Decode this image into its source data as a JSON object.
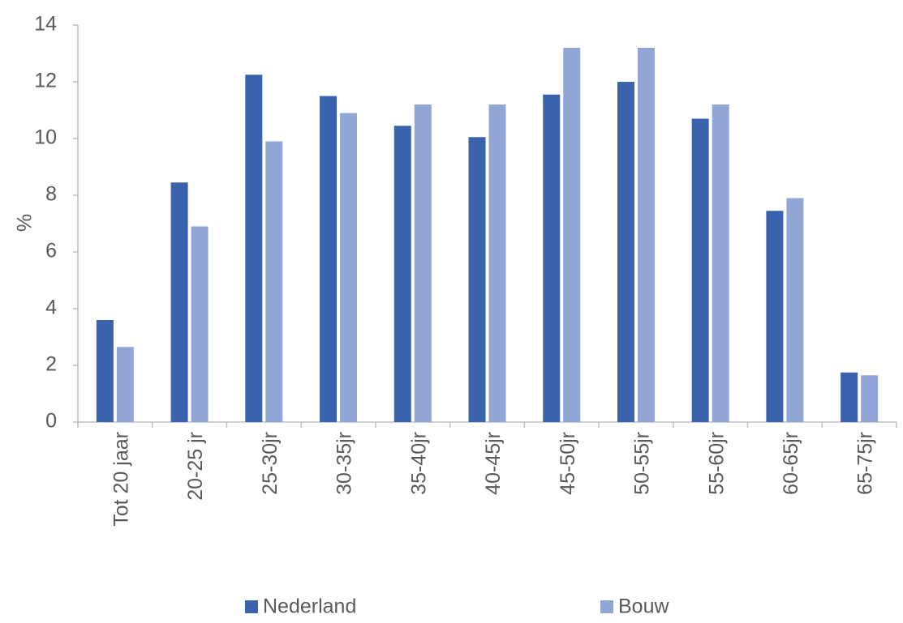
{
  "chart_data": {
    "type": "bar",
    "y_label": "%",
    "categories": [
      "Tot 20 jaar",
      "20-25 jr",
      "25-30jr",
      "30-35jr",
      "35-40jr",
      "40-45jr",
      "45-50jr",
      "50-55jr",
      "55-60jr",
      "60-65jr",
      "65-75jr"
    ],
    "series": [
      {
        "name": "Nederland",
        "color": "#3b62ad",
        "values": [
          3.6,
          8.45,
          12.25,
          11.5,
          10.45,
          10.05,
          11.55,
          12.0,
          10.7,
          7.45,
          1.75
        ]
      },
      {
        "name": "Bouw",
        "color": "#92a6d6",
        "values": [
          2.65,
          6.9,
          9.9,
          10.9,
          11.2,
          11.2,
          13.2,
          13.2,
          11.2,
          7.9,
          1.65
        ]
      }
    ],
    "ylim": [
      0,
      14
    ],
    "yticks": [
      0,
      2,
      4,
      6,
      8,
      10,
      12,
      14
    ],
    "grid": false,
    "legend": "bottom"
  }
}
